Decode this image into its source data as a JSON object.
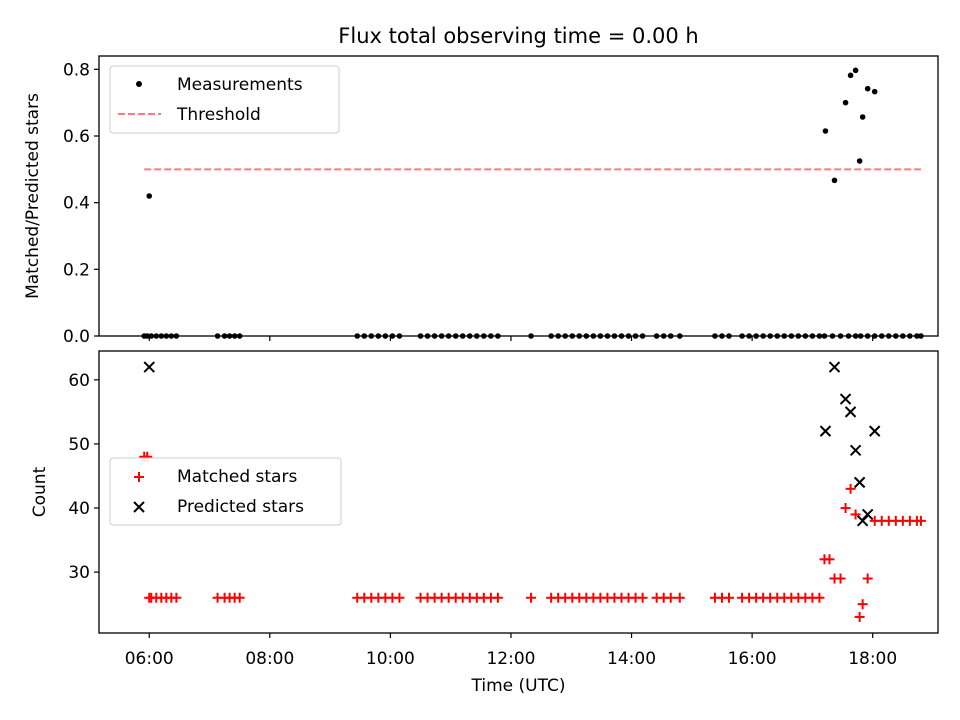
{
  "chart_data": [
    {
      "type": "scatter",
      "title": "Flux total observing time = 0.00 h",
      "ylabel": "Matched/Predicted stars",
      "xlabel": "",
      "ylim": [
        0,
        0.84
      ],
      "xlim": [
        "05:10",
        "19:05"
      ],
      "yticks": [
        "0.0",
        "0.2",
        "0.4",
        "0.6",
        "0.8"
      ],
      "grid": false,
      "legend_position": "top-left",
      "series": [
        {
          "name": "Measurements",
          "style": "dot",
          "color": "#000000",
          "x": [
            "05:55",
            "05:58",
            "06:00",
            "06:02",
            "06:07",
            "06:12",
            "06:17",
            "06:22",
            "06:27",
            "07:08",
            "07:15",
            "07:20",
            "07:25",
            "07:30",
            "09:27",
            "09:34",
            "09:41",
            "09:48",
            "09:55",
            "10:02",
            "10:09",
            "10:30",
            "10:37",
            "10:44",
            "10:51",
            "10:58",
            "11:05",
            "11:12",
            "11:19",
            "11:26",
            "11:33",
            "11:40",
            "11:47",
            "12:20",
            "12:40",
            "12:47",
            "12:54",
            "13:01",
            "13:08",
            "13:15",
            "13:22",
            "13:29",
            "13:36",
            "13:43",
            "13:50",
            "13:57",
            "14:04",
            "14:11",
            "14:25",
            "14:32",
            "14:39",
            "14:48",
            "15:23",
            "15:30",
            "15:37",
            "15:50",
            "15:57",
            "16:04",
            "16:11",
            "16:18",
            "16:25",
            "16:32",
            "16:39",
            "16:46",
            "16:53",
            "17:00",
            "17:07",
            "17:12",
            "17:20",
            "17:28",
            "17:36",
            "17:43",
            "17:48",
            "17:55",
            "18:02",
            "18:09",
            "18:16",
            "18:23",
            "18:30",
            "18:37",
            "18:44",
            "18:48",
            "17:13",
            "17:22",
            "17:33",
            "17:38",
            "17:43",
            "17:47",
            "17:50",
            "17:55",
            "18:02"
          ],
          "y": [
            0,
            0,
            0.42,
            0,
            0,
            0,
            0,
            0,
            0,
            0,
            0,
            0,
            0,
            0,
            0,
            0,
            0,
            0,
            0,
            0,
            0,
            0,
            0,
            0,
            0,
            0,
            0,
            0,
            0,
            0,
            0,
            0,
            0,
            0,
            0,
            0,
            0,
            0,
            0,
            0,
            0,
            0,
            0,
            0,
            0,
            0,
            0,
            0,
            0,
            0,
            0,
            0,
            0,
            0,
            0,
            0,
            0,
            0,
            0,
            0,
            0,
            0,
            0,
            0,
            0,
            0,
            0,
            0,
            0,
            0,
            0,
            0,
            0,
            0,
            0,
            0,
            0,
            0,
            0,
            0,
            0,
            0,
            0.615,
            0.467,
            0.7,
            0.782,
            0.797,
            0.525,
            0.657,
            0.742,
            0.733
          ]
        },
        {
          "name": "Threshold",
          "style": "dashed-line",
          "color": "#ff7b7b",
          "x": [
            "05:55",
            "18:48"
          ],
          "y": [
            0.5,
            0.5
          ]
        }
      ]
    },
    {
      "type": "scatter",
      "title": "",
      "ylabel": "Count",
      "xlabel": "Time (UTC)",
      "ylim": [
        20.5,
        64.5
      ],
      "xlim": [
        "05:10",
        "19:05"
      ],
      "yticks": [
        "30",
        "40",
        "50",
        "60"
      ],
      "xticks": [
        "06:00",
        "08:00",
        "10:00",
        "12:00",
        "14:00",
        "16:00",
        "18:00"
      ],
      "grid": false,
      "legend_position": "center-left",
      "series": [
        {
          "name": "Matched stars",
          "style": "plus",
          "color": "#ff0000",
          "x": [
            "05:55",
            "05:58",
            "06:00",
            "06:02",
            "06:07",
            "06:12",
            "06:17",
            "06:22",
            "06:27",
            "07:08",
            "07:15",
            "07:20",
            "07:25",
            "07:30",
            "09:27",
            "09:34",
            "09:41",
            "09:48",
            "09:55",
            "10:02",
            "10:09",
            "10:30",
            "10:37",
            "10:44",
            "10:51",
            "10:58",
            "11:05",
            "11:12",
            "11:19",
            "11:26",
            "11:33",
            "11:40",
            "11:47",
            "12:20",
            "12:40",
            "12:47",
            "12:54",
            "13:01",
            "13:08",
            "13:15",
            "13:22",
            "13:29",
            "13:36",
            "13:43",
            "13:50",
            "13:57",
            "14:04",
            "14:11",
            "14:25",
            "14:32",
            "14:39",
            "14:48",
            "15:23",
            "15:30",
            "15:37",
            "15:50",
            "15:57",
            "16:04",
            "16:11",
            "16:18",
            "16:25",
            "16:32",
            "16:39",
            "16:46",
            "16:53",
            "17:00",
            "17:07",
            "17:12",
            "17:17",
            "17:22",
            "17:28",
            "17:33",
            "17:38",
            "17:43",
            "17:47",
            "17:50",
            "17:55",
            "18:02",
            "18:09",
            "18:16",
            "18:23",
            "18:30",
            "18:37",
            "18:44",
            "18:48"
          ],
          "y": [
            48,
            48,
            26,
            26,
            26,
            26,
            26,
            26,
            26,
            26,
            26,
            26,
            26,
            26,
            26,
            26,
            26,
            26,
            26,
            26,
            26,
            26,
            26,
            26,
            26,
            26,
            26,
            26,
            26,
            26,
            26,
            26,
            26,
            26,
            26,
            26,
            26,
            26,
            26,
            26,
            26,
            26,
            26,
            26,
            26,
            26,
            26,
            26,
            26,
            26,
            26,
            26,
            26,
            26,
            26,
            26,
            26,
            26,
            26,
            26,
            26,
            26,
            26,
            26,
            26,
            26,
            26,
            32,
            32,
            29,
            29,
            40,
            43,
            39,
            23,
            25,
            29,
            38,
            38,
            38,
            38,
            38,
            38,
            38,
            38
          ]
        },
        {
          "name": "Predicted stars",
          "style": "x",
          "color": "#000000",
          "x": [
            "06:00",
            "17:13",
            "17:22",
            "17:33",
            "17:38",
            "17:43",
            "17:47",
            "17:50",
            "17:55",
            "18:02"
          ],
          "y": [
            62,
            52,
            62,
            57,
            55,
            49,
            44,
            38,
            39,
            52
          ]
        }
      ]
    }
  ]
}
